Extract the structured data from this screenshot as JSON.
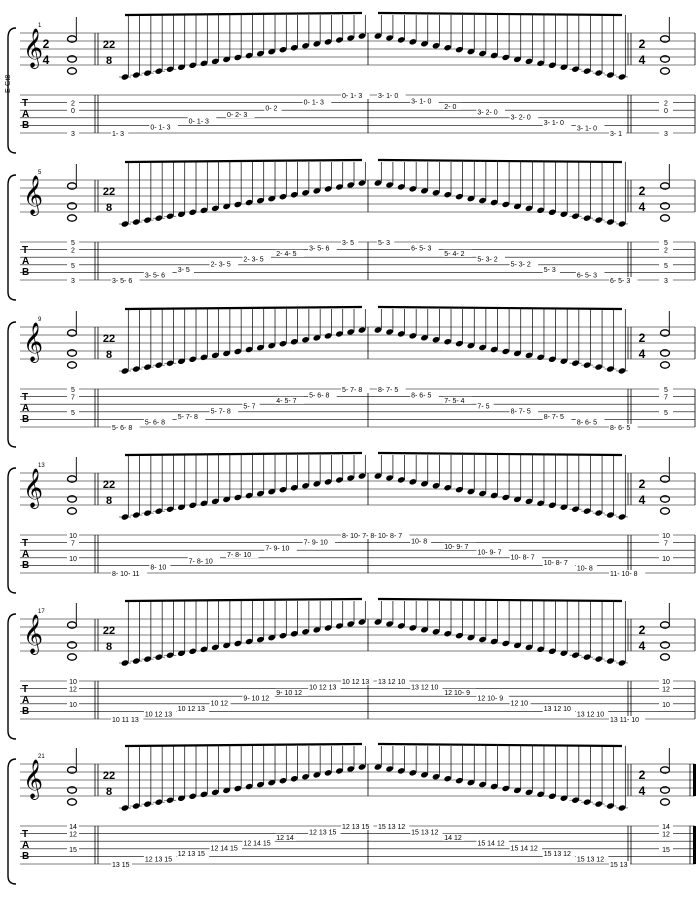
{
  "score": {
    "instrument_label": "E-Gt8",
    "time_sig_start": {
      "num": "2",
      "den": "4"
    },
    "time_sig_run": {
      "num": "22",
      "den": "8"
    },
    "tab_letters": [
      "T",
      "A",
      "B"
    ],
    "systems": [
      {
        "measure_number": "1",
        "chord_left": [
          "2",
          "0",
          "3"
        ],
        "chord_right": [
          "2",
          "0",
          "3"
        ],
        "ascending_tab": [
          "1- 3",
          "0- 1- 3",
          "0- 1- 3",
          "0- 2- 3",
          "0- 2",
          "0- 1- 3",
          "0- 1- 3"
        ],
        "descending_tab": [
          "3- 1- 0",
          "3- 1- 0",
          "2- 0",
          "3- 2- 0",
          "3- 2- 0",
          "3- 1- 0",
          "3- 1- 0",
          "3- 1"
        ]
      },
      {
        "measure_number": "5",
        "chord_left": [
          "5",
          "2",
          "5",
          "3"
        ],
        "chord_right": [
          "5",
          "2",
          "5",
          "3"
        ],
        "ascending_tab": [
          "3- 5- 6",
          "3- 5- 6",
          "3- 5",
          "2- 3- 5",
          "2- 3- 5",
          "2- 4- 5",
          "3- 5- 6",
          "3- 5"
        ],
        "descending_tab": [
          "5- 3",
          "6- 5- 3",
          "5- 4- 2",
          "5- 3- 2",
          "5- 3- 2",
          "5- 3",
          "6- 5- 3",
          "6- 5- 3"
        ]
      },
      {
        "measure_number": "9",
        "chord_left": [
          "5",
          "7",
          "5"
        ],
        "chord_right": [
          "5",
          "7",
          "5"
        ],
        "ascending_tab": [
          "5- 6- 8",
          "5- 6- 8",
          "5- 7- 8",
          "5- 7- 8",
          "5- 7",
          "4- 5- 7",
          "5- 6- 8",
          "5- 7- 8"
        ],
        "descending_tab": [
          "8- 7- 5",
          "8- 6- 5",
          "7- 5- 4",
          "7- 5",
          "8- 7- 5",
          "8- 7- 5",
          "8- 6- 5",
          "8- 6- 5"
        ]
      },
      {
        "measure_number": "13",
        "chord_left": [
          "10",
          "7",
          "10"
        ],
        "chord_right": [
          "10",
          "7",
          "10"
        ],
        "ascending_tab": [
          "8- 10- 11",
          "8- 10",
          "7- 8- 10",
          "7- 8- 10",
          "7- 9- 10",
          "7- 9- 10",
          "8- 10- 7- 8- 10"
        ],
        "descending_tab": [
          "10- 8- 7",
          "10- 8",
          "10- 9- 7",
          "10- 9- 7",
          "10- 8- 7",
          "10- 8- 7",
          "10- 8",
          "11- 10- 8"
        ]
      },
      {
        "measure_number": "17",
        "chord_left": [
          "10",
          "12",
          "10"
        ],
        "chord_right": [
          "10",
          "12",
          "10"
        ],
        "ascending_tab": [
          "10 11 13",
          "10 12 13",
          "10 12 13",
          "10 12",
          "9- 10 12",
          "9- 10 12",
          "10 12 13",
          "10 12 13"
        ],
        "descending_tab": [
          "13 12 10",
          "13 12 10",
          "12 10- 9",
          "12 10- 9",
          "12 10",
          "13 12 10",
          "13 12 10",
          "13 11- 10"
        ]
      },
      {
        "measure_number": "21",
        "chord_left": [
          "14",
          "12",
          "15"
        ],
        "chord_right": [
          "14",
          "12",
          "15"
        ],
        "ascending_tab": [
          "13 15",
          "12 13 15",
          "12 13 15",
          "12 14 15",
          "12 14 15",
          "12 14",
          "12 13 15",
          "12 13 15"
        ],
        "descending_tab": [
          "15 13 12",
          "15 13 12",
          "14 12",
          "15 14 12",
          "15 14 12",
          "15 13 12",
          "15 13 12",
          "15 13"
        ]
      }
    ]
  }
}
